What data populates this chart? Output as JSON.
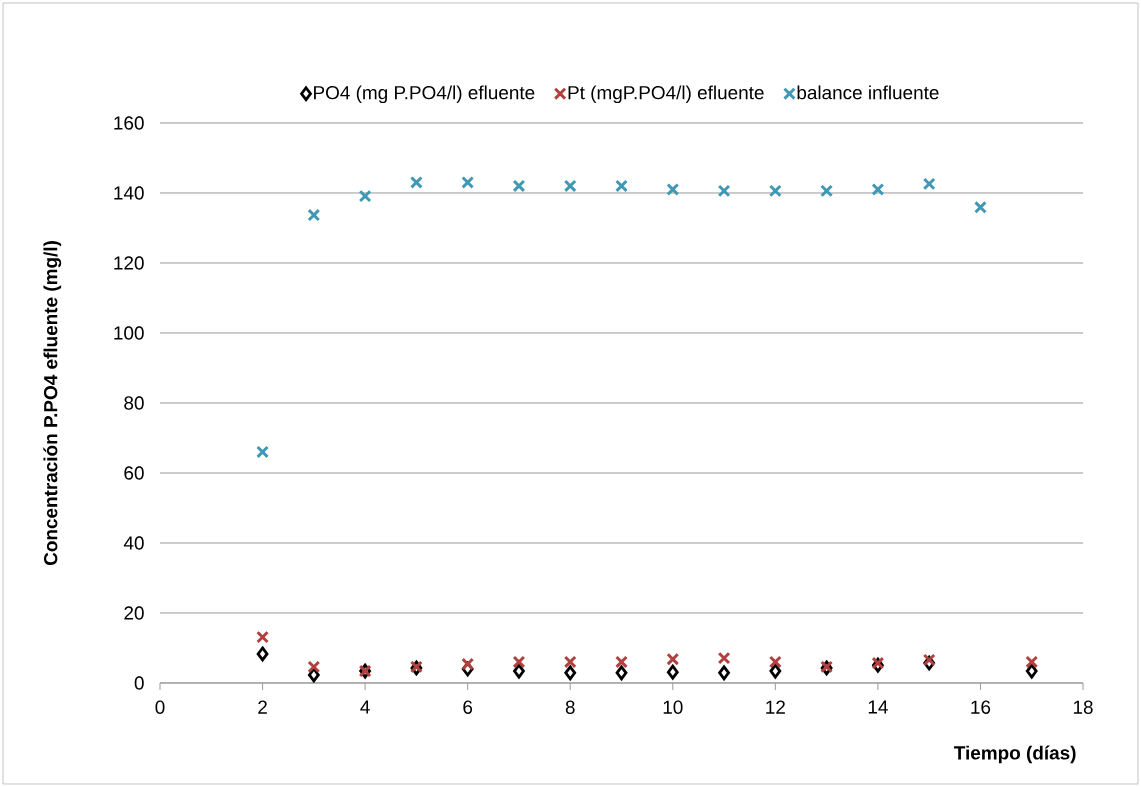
{
  "chart_data": {
    "type": "scatter",
    "xlabel": "Tiempo (días)",
    "ylabel": "Concentración P.PO4 efluente (mg/l)",
    "xlim": [
      0,
      18
    ],
    "ylim": [
      0,
      160
    ],
    "xticks": [
      0,
      2,
      4,
      6,
      8,
      10,
      12,
      14,
      16,
      18
    ],
    "yticks": [
      0,
      20,
      40,
      60,
      80,
      100,
      120,
      140,
      160
    ],
    "grid": "y",
    "legend": "top",
    "series": [
      {
        "name": "PO4 (mg P.PO4/l) efluente",
        "color": "#000000",
        "marker": "diamond",
        "x": [
          2,
          3,
          4,
          5,
          6,
          7,
          8,
          9,
          10,
          11,
          12,
          13,
          14,
          15,
          17
        ],
        "values": [
          8.3,
          2.3,
          3.4,
          4.3,
          4.0,
          3.4,
          2.9,
          2.9,
          3.1,
          2.9,
          3.4,
          4.3,
          5.1,
          5.7,
          3.4
        ]
      },
      {
        "name": "Pt (mgP.PO4/l) efluente",
        "color": "#b0413e",
        "marker": "cross",
        "x": [
          2,
          3,
          4,
          5,
          6,
          7,
          8,
          9,
          10,
          11,
          12,
          13,
          14,
          15,
          17
        ],
        "values": [
          13.1,
          4.6,
          3.4,
          4.6,
          5.4,
          6.0,
          6.0,
          6.0,
          6.8,
          7.1,
          6.0,
          4.6,
          5.7,
          6.6,
          6.0
        ]
      },
      {
        "name": "balance influente",
        "color": "#4198b5",
        "marker": "cross",
        "x": [
          2,
          3,
          4,
          5,
          6,
          7,
          8,
          9,
          10,
          11,
          12,
          13,
          14,
          15,
          16
        ],
        "values": [
          66,
          133.7,
          139.1,
          143,
          143,
          142,
          142,
          142,
          141,
          140.6,
          140.6,
          140.6,
          141,
          142.6,
          135.9
        ]
      }
    ]
  }
}
